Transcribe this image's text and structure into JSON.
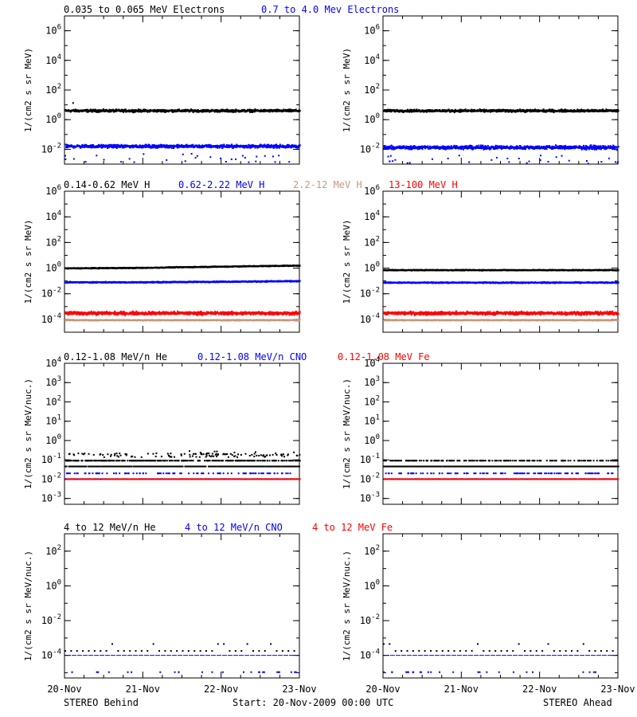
{
  "colors": {
    "black": "#000000",
    "blue": "#0000ff",
    "tan": "#c8967d",
    "red": "#ff0000"
  },
  "footer": {
    "left": "STEREO Behind",
    "center": "Start: 20-Nov-2009 00:00 UTC",
    "right": "STEREO Ahead"
  },
  "x_ticks": [
    "20-Nov",
    "21-Nov",
    "22-Nov",
    "23-Nov"
  ],
  "rows": [
    {
      "headers": [
        {
          "text": "0.035 to 0.065 MeV Electrons",
          "color": "black"
        },
        {
          "text": "0.7 to 4.0 Mev Electrons",
          "color": "blue"
        }
      ]
    },
    {
      "headers": [
        {
          "text": "0.14-0.62 MeV H",
          "color": "black"
        },
        {
          "text": "0.62-2.22 MeV H",
          "color": "blue"
        },
        {
          "text": "2.2-12 MeV H",
          "color": "tan"
        },
        {
          "text": "13-100 MeV H",
          "color": "red"
        }
      ]
    },
    {
      "headers": [
        {
          "text": "0.12-1.08 MeV/n He",
          "color": "black"
        },
        {
          "text": "0.12-1.08 MeV/n CNO",
          "color": "blue"
        },
        {
          "text": "0.12-1.08 MeV Fe",
          "color": "red"
        }
      ]
    },
    {
      "headers": [
        {
          "text": "4 to 12 MeV/n He",
          "color": "black"
        },
        {
          "text": "4 to 12 MeV/n CNO",
          "color": "blue"
        },
        {
          "text": "4 to 12 MeV Fe",
          "color": "red"
        }
      ]
    }
  ],
  "chart_data": [
    {
      "id": "r1-behind",
      "type": "scatter",
      "row": 0,
      "col": 0,
      "yscale": "log",
      "ylim": [
        0.001,
        10000000
      ],
      "ylabel": "1/(cm2 s sr MeV)",
      "yticks": [
        {
          "base": "10",
          "exp": "-2"
        },
        {
          "base": "10",
          "exp": "0"
        },
        {
          "base": "10",
          "exp": "2"
        },
        {
          "base": "10",
          "exp": "4"
        },
        {
          "base": "10",
          "exp": "6"
        }
      ],
      "xlim": [
        0,
        3
      ],
      "x_unit": "days since 20-Nov-2009 00:00 UTC",
      "series": [
        {
          "color": "black",
          "level": 4.5,
          "spread": 0.12,
          "outliers": [
            [
              0.1,
              15
            ]
          ]
        },
        {
          "color": "blue",
          "level": 0.018,
          "spread": 0.15,
          "low_outliers": true
        }
      ]
    },
    {
      "id": "r1-ahead",
      "type": "scatter",
      "row": 0,
      "col": 1,
      "yscale": "log",
      "ylim": [
        0.001,
        10000000
      ],
      "ylabel": "1/(cm2 s sr MeV)",
      "yticks": [
        {
          "base": "10",
          "exp": "-2"
        },
        {
          "base": "10",
          "exp": "0"
        },
        {
          "base": "10",
          "exp": "2"
        },
        {
          "base": "10",
          "exp": "4"
        },
        {
          "base": "10",
          "exp": "6"
        }
      ],
      "xlim": [
        0,
        3
      ],
      "series": [
        {
          "color": "black",
          "level": 4.5,
          "spread": 0.12,
          "outliers": []
        },
        {
          "color": "blue",
          "level": 0.015,
          "spread": 0.18,
          "low_outliers": true
        }
      ]
    },
    {
      "id": "r2-behind",
      "type": "scatter",
      "row": 1,
      "col": 0,
      "yscale": "log",
      "ylim": [
        1e-05,
        1000000
      ],
      "ylabel": "1/(cm2 s sr MeV)",
      "yticks": [
        {
          "base": "10",
          "exp": "-4"
        },
        {
          "base": "10",
          "exp": "-2"
        },
        {
          "base": "10",
          "exp": "0"
        },
        {
          "base": "10",
          "exp": "2"
        },
        {
          "base": "10",
          "exp": "4"
        },
        {
          "base": "10",
          "exp": "6"
        }
      ],
      "xlim": [
        0,
        3
      ],
      "series": [
        {
          "color": "black",
          "level": 1.1,
          "spread": 0.05,
          "trend": [
            1.1,
            1.2,
            1.5,
            1.8
          ]
        },
        {
          "color": "blue",
          "level": 0.09,
          "spread": 0.06,
          "trend": [
            0.09,
            0.09,
            0.1,
            0.11
          ]
        },
        {
          "color": "red",
          "level": 0.00035,
          "spread": 0.18
        },
        {
          "color": "tan",
          "level": 0.0001,
          "spread": 0.05
        }
      ]
    },
    {
      "id": "r2-ahead",
      "type": "scatter",
      "row": 1,
      "col": 1,
      "yscale": "log",
      "ylim": [
        1e-05,
        1000000
      ],
      "ylabel": "1/(cm2 s sr MeV)",
      "yticks": [
        {
          "base": "10",
          "exp": "-4"
        },
        {
          "base": "10",
          "exp": "-2"
        },
        {
          "base": "10",
          "exp": "0"
        },
        {
          "base": "10",
          "exp": "2"
        },
        {
          "base": "10",
          "exp": "4"
        },
        {
          "base": "10",
          "exp": "6"
        }
      ],
      "xlim": [
        0,
        3
      ],
      "series": [
        {
          "color": "black",
          "level": 0.8,
          "spread": 0.05
        },
        {
          "color": "blue",
          "level": 0.085,
          "spread": 0.06
        },
        {
          "color": "red",
          "level": 0.00035,
          "spread": 0.18
        },
        {
          "color": "tan",
          "level": 0.0001,
          "spread": 0.05
        }
      ]
    },
    {
      "id": "r3-behind",
      "type": "scatter",
      "row": 2,
      "col": 0,
      "yscale": "log",
      "ylim": [
        0.0005,
        10000
      ],
      "ylabel": "1/(cm2 s sr MeV/nuc.)",
      "yticks": [
        {
          "base": "10",
          "exp": "-3"
        },
        {
          "base": "10",
          "exp": "-2"
        },
        {
          "base": "10",
          "exp": "-1"
        },
        {
          "base": "10",
          "exp": "0"
        },
        {
          "base": "10",
          "exp": "1"
        },
        {
          "base": "10",
          "exp": "2"
        },
        {
          "base": "10",
          "exp": "3"
        },
        {
          "base": "10",
          "exp": "4"
        }
      ],
      "xlim": [
        0,
        3
      ],
      "series": [
        {
          "color": "black",
          "level": 0.05,
          "quantized": [
            0.05,
            0.1,
            0.15,
            0.2
          ],
          "activity": "rising"
        },
        {
          "color": "blue",
          "level": 0.011,
          "quantized": [
            0.011,
            0.022
          ]
        },
        {
          "color": "red",
          "level": 0.011,
          "quantized": [
            0.011
          ]
        }
      ]
    },
    {
      "id": "r3-ahead",
      "type": "scatter",
      "row": 2,
      "col": 1,
      "yscale": "log",
      "ylim": [
        0.0005,
        10000
      ],
      "ylabel": "1/(cm2 s sr MeV/nuc.)",
      "yticks": [
        {
          "base": "10",
          "exp": "-3"
        },
        {
          "base": "10",
          "exp": "-2"
        },
        {
          "base": "10",
          "exp": "-1"
        },
        {
          "base": "10",
          "exp": "0"
        },
        {
          "base": "10",
          "exp": "1"
        },
        {
          "base": "10",
          "exp": "2"
        },
        {
          "base": "10",
          "exp": "3"
        },
        {
          "base": "10",
          "exp": "4"
        }
      ],
      "xlim": [
        0,
        3
      ],
      "series": [
        {
          "color": "black",
          "level": 0.05,
          "quantized": [
            0.05,
            0.1
          ],
          "activity": "flat"
        },
        {
          "color": "blue",
          "level": 0.011,
          "quantized": [
            0.011,
            0.022
          ]
        },
        {
          "color": "red",
          "level": 0.011,
          "quantized": [
            0.011
          ]
        }
      ]
    },
    {
      "id": "r4-behind",
      "type": "scatter",
      "row": 3,
      "col": 0,
      "yscale": "log",
      "ylim": [
        5e-06,
        1000
      ],
      "ylabel": "1/(cm2 s sr MeV/nuc.)",
      "yticks": [
        {
          "base": "10",
          "exp": "-4"
        },
        {
          "base": "10",
          "exp": "-2"
        },
        {
          "base": "10",
          "exp": "0"
        },
        {
          "base": "10",
          "exp": "2"
        }
      ],
      "xlim": [
        0,
        3
      ],
      "series": [
        {
          "color": "blue",
          "level": 0.0001,
          "line": true
        },
        {
          "color": "black",
          "level": 0.0002,
          "sparse": true
        }
      ]
    },
    {
      "id": "r4-ahead",
      "type": "scatter",
      "row": 3,
      "col": 1,
      "yscale": "log",
      "ylim": [
        5e-06,
        1000
      ],
      "ylabel": "1/(cm2 s sr MeV/nuc.)",
      "yticks": [
        {
          "base": "10",
          "exp": "-4"
        },
        {
          "base": "10",
          "exp": "-2"
        },
        {
          "base": "10",
          "exp": "0"
        },
        {
          "base": "10",
          "exp": "2"
        }
      ],
      "xlim": [
        0,
        3
      ],
      "series": [
        {
          "color": "blue",
          "level": 0.0001,
          "line": true
        },
        {
          "color": "black",
          "level": 0.0002,
          "sparse": true
        }
      ]
    }
  ]
}
